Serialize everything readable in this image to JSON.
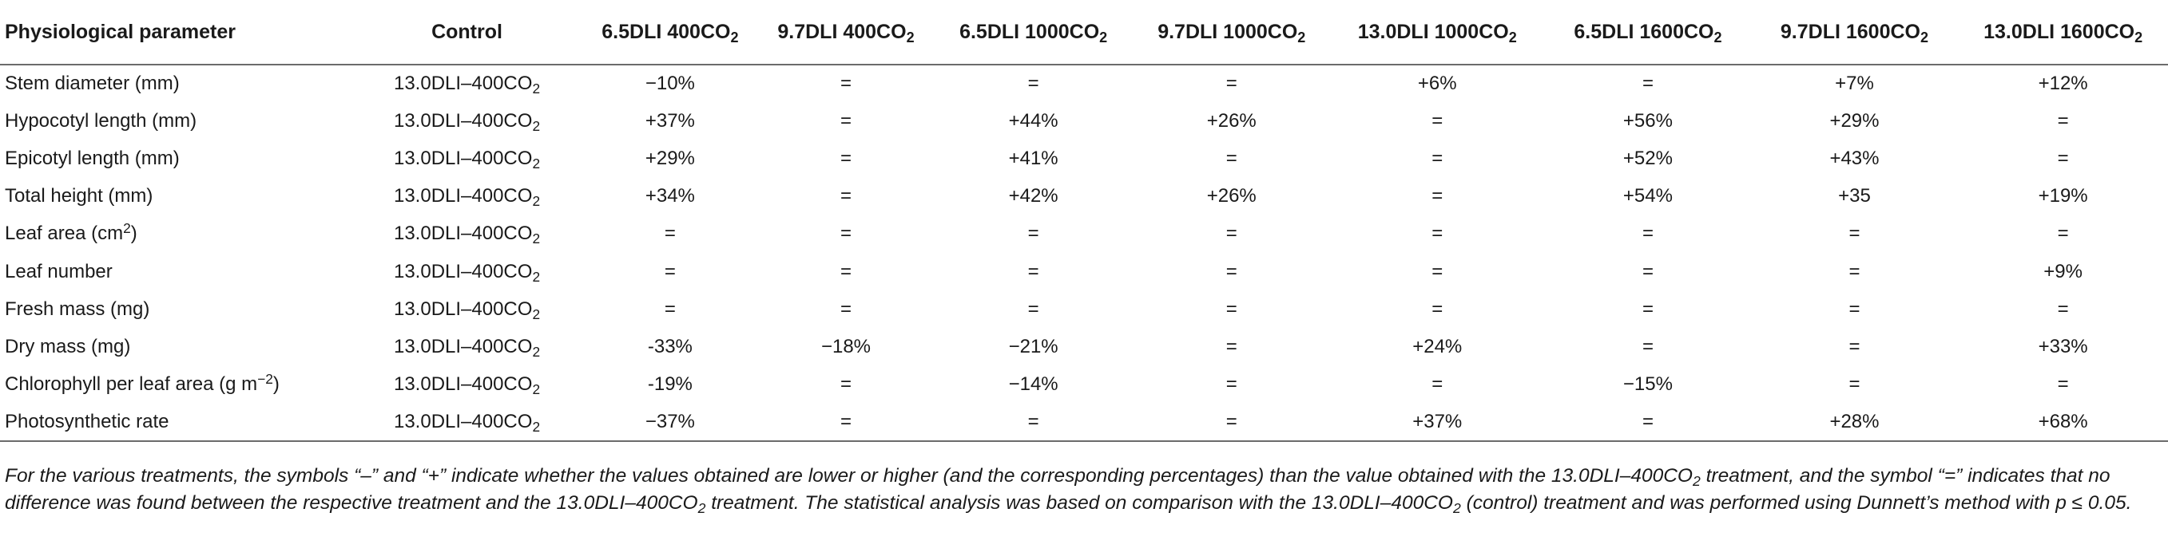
{
  "table": {
    "headers": [
      {
        "base": "Physiological parameter",
        "sub": ""
      },
      {
        "base": "Control",
        "sub": ""
      },
      {
        "base": "6.5DLI 400CO",
        "sub": "2"
      },
      {
        "base": "9.7DLI 400CO",
        "sub": "2"
      },
      {
        "base": "6.5DLI 1000CO",
        "sub": "2"
      },
      {
        "base": "9.7DLI 1000CO",
        "sub": "2"
      },
      {
        "base": "13.0DLI 1000CO",
        "sub": "2"
      },
      {
        "base": "6.5DLI 1600CO",
        "sub": "2"
      },
      {
        "base": "9.7DLI 1600CO",
        "sub": "2"
      },
      {
        "base": "13.0DLI 1600CO",
        "sub": "2"
      }
    ],
    "rows": [
      {
        "param": "Stem diameter (mm)",
        "param_sup": "",
        "param_tail": "",
        "control": "13.0DLI–400CO",
        "control_sub": "2",
        "values": [
          "−10%",
          "=",
          "=",
          "=",
          "+6%",
          "=",
          "+7%",
          "+12%"
        ]
      },
      {
        "param": "Hypocotyl length (mm)",
        "param_sup": "",
        "param_tail": "",
        "control": "13.0DLI–400CO",
        "control_sub": "2",
        "values": [
          "+37%",
          "=",
          "+44%",
          "+26%",
          "=",
          "+56%",
          "+29%",
          "="
        ]
      },
      {
        "param": "Epicotyl length (mm)",
        "param_sup": "",
        "param_tail": "",
        "control": "13.0DLI–400CO",
        "control_sub": "2",
        "values": [
          "+29%",
          "=",
          "+41%",
          "=",
          "=",
          "+52%",
          "+43%",
          "="
        ]
      },
      {
        "param": "Total height (mm)",
        "param_sup": "",
        "param_tail": "",
        "control": "13.0DLI–400CO",
        "control_sub": "2",
        "values": [
          "+34%",
          "=",
          "+42%",
          "+26%",
          "=",
          "+54%",
          "+35",
          "+19%"
        ]
      },
      {
        "param": "Leaf area (cm",
        "param_sup": "2",
        "param_tail": ")",
        "control": "13.0DLI–400CO",
        "control_sub": "2",
        "values": [
          "=",
          "=",
          "=",
          "=",
          "=",
          "=",
          "=",
          "="
        ]
      },
      {
        "param": "Leaf number",
        "param_sup": "",
        "param_tail": "",
        "control": "13.0DLI–400CO",
        "control_sub": "2",
        "values": [
          "=",
          "=",
          "=",
          "=",
          "=",
          "=",
          "=",
          "+9%"
        ]
      },
      {
        "param": "Fresh mass (mg)",
        "param_sup": "",
        "param_tail": "",
        "control": "13.0DLI–400CO",
        "control_sub": "2",
        "values": [
          "=",
          "=",
          "=",
          "=",
          "=",
          "=",
          "=",
          "="
        ]
      },
      {
        "param": "Dry mass (mg)",
        "param_sup": "",
        "param_tail": "",
        "control": "13.0DLI–400CO",
        "control_sub": "2",
        "values": [
          "-33%",
          "−18%",
          "−21%",
          "=",
          "+24%",
          "=",
          "=",
          "+33%"
        ]
      },
      {
        "param": "Chlorophyll per leaf area (g m",
        "param_sup": "−2",
        "param_tail": ")",
        "control": "13.0DLI–400CO",
        "control_sub": "2",
        "values": [
          "-19%",
          "=",
          "−14%",
          "=",
          "=",
          "−15%",
          "=",
          "="
        ]
      },
      {
        "param": "Photosynthetic rate",
        "param_sup": "",
        "param_tail": "",
        "control": "13.0DLI–400CO",
        "control_sub": "2",
        "values": [
          "−37%",
          "=",
          "=",
          "=",
          "+37%",
          "=",
          "+28%",
          "+68%"
        ]
      }
    ]
  },
  "footnote": {
    "p1": "For the various treatments, the symbols “–” and “+” indicate whether the values obtained are lower or higher (and the corresponding percentages) than the value obtained with the 13.0DLI–400CO",
    "s1": "2",
    "p2": " treatment, and the symbol “=” indicates that no difference was found between the respective treatment and the 13.0DLI–400CO",
    "s2": "2",
    "p3": " treatment. The statistical analysis was based on comparison with the 13.0DLI–400CO",
    "s3": "2",
    "p4": " (control) treatment and was performed using Dunnett’s method with p ≤ 0.05."
  }
}
